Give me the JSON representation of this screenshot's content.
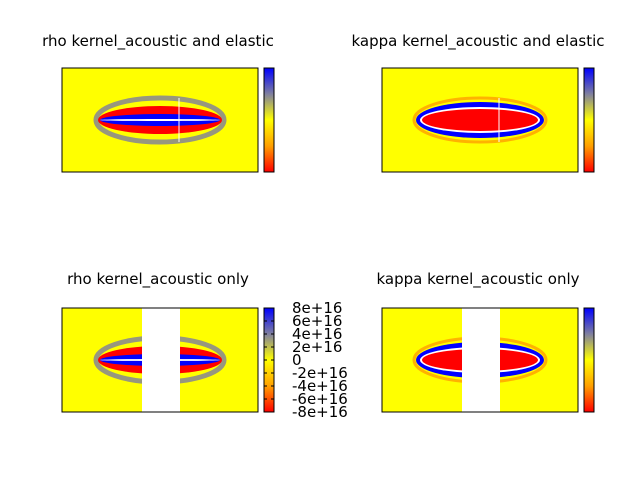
{
  "chart_data": [
    {
      "type": "heatmap",
      "title": "rho kernel_acoustic and elastic",
      "xlabel": "",
      "ylabel": "",
      "pattern": "rho",
      "masked_center": false,
      "colorbar": {
        "ticks": []
      }
    },
    {
      "type": "heatmap",
      "title": "kappa kernel_acoustic and elastic",
      "xlabel": "",
      "ylabel": "",
      "pattern": "kappa",
      "masked_center": false,
      "colorbar": {
        "ticks": []
      }
    },
    {
      "type": "heatmap",
      "title": "rho kernel_acoustic only",
      "xlabel": "",
      "ylabel": "",
      "pattern": "rho",
      "masked_center": true,
      "colorbar": {
        "ticks": [
          "8e+16",
          "6e+16",
          "4e+16",
          "2e+16",
          "0",
          "-2e+16",
          "-4e+16",
          "-6e+16",
          "-8e+16"
        ],
        "range": [
          -8e+16,
          8e+16
        ]
      }
    },
    {
      "type": "heatmap",
      "title": "kappa kernel_acoustic only",
      "xlabel": "",
      "ylabel": "",
      "pattern": "kappa",
      "masked_center": true,
      "colorbar": {
        "ticks": []
      }
    }
  ],
  "colors": {
    "background": "#ffff00",
    "positive": "#0000ff",
    "negative": "#ff0000",
    "neutral": "#ffff00",
    "gray_ring": "#8c8c8c",
    "mask": "#ffffff"
  }
}
